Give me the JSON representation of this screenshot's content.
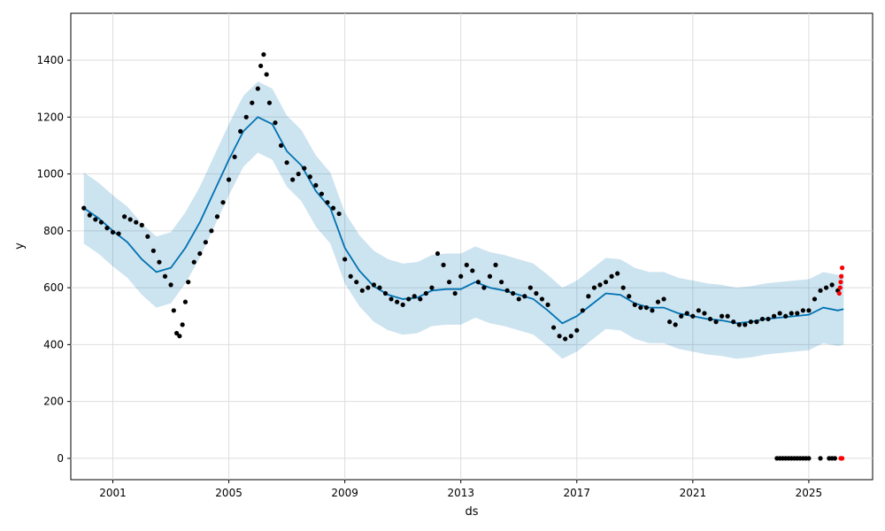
{
  "chart_data": {
    "type": "scatter",
    "title": "",
    "xlabel": "ds",
    "ylabel": "y",
    "xlim": [
      1999.55,
      2027.2
    ],
    "ylim": [
      -75,
      1565
    ],
    "xticks": [
      2001,
      2005,
      2009,
      2013,
      2017,
      2021,
      2025
    ],
    "yticks": [
      0,
      200,
      400,
      600,
      800,
      1000,
      1200,
      1400
    ],
    "grid": true,
    "legend": "none",
    "colors": {
      "observed": "#000000",
      "forecast_line": "#0072b2",
      "uncertainty_band": "#0072b2",
      "anomaly": "#ff0000",
      "grid": "#dddddd"
    },
    "forecast_line": [
      [
        2000.0,
        880
      ],
      [
        2000.5,
        845
      ],
      [
        2001.0,
        800
      ],
      [
        2001.5,
        760
      ],
      [
        2002.0,
        700
      ],
      [
        2002.5,
        655
      ],
      [
        2003.0,
        670
      ],
      [
        2003.5,
        740
      ],
      [
        2004.0,
        830
      ],
      [
        2004.5,
        940
      ],
      [
        2005.0,
        1050
      ],
      [
        2005.5,
        1150
      ],
      [
        2006.0,
        1200
      ],
      [
        2006.5,
        1175
      ],
      [
        2007.0,
        1080
      ],
      [
        2007.5,
        1030
      ],
      [
        2008.0,
        940
      ],
      [
        2008.5,
        880
      ],
      [
        2009.0,
        740
      ],
      [
        2009.5,
        660
      ],
      [
        2010.0,
        605
      ],
      [
        2010.5,
        575
      ],
      [
        2011.0,
        560
      ],
      [
        2011.5,
        565
      ],
      [
        2012.0,
        590
      ],
      [
        2012.5,
        595
      ],
      [
        2013.0,
        595
      ],
      [
        2013.5,
        620
      ],
      [
        2014.0,
        600
      ],
      [
        2014.5,
        590
      ],
      [
        2015.0,
        575
      ],
      [
        2015.5,
        560
      ],
      [
        2016.0,
        520
      ],
      [
        2016.5,
        475
      ],
      [
        2017.0,
        500
      ],
      [
        2017.5,
        540
      ],
      [
        2018.0,
        580
      ],
      [
        2018.5,
        575
      ],
      [
        2019.0,
        545
      ],
      [
        2019.5,
        530
      ],
      [
        2020.0,
        530
      ],
      [
        2020.5,
        510
      ],
      [
        2021.0,
        500
      ],
      [
        2021.5,
        490
      ],
      [
        2022.0,
        485
      ],
      [
        2022.5,
        475
      ],
      [
        2023.0,
        480
      ],
      [
        2023.5,
        490
      ],
      [
        2024.0,
        495
      ],
      [
        2024.5,
        500
      ],
      [
        2025.0,
        505
      ],
      [
        2025.5,
        530
      ],
      [
        2026.0,
        520
      ],
      [
        2026.2,
        525
      ]
    ],
    "band_halfwidth": 125,
    "observed": [
      [
        2000.0,
        880
      ],
      [
        2000.2,
        855
      ],
      [
        2000.4,
        840
      ],
      [
        2000.6,
        830
      ],
      [
        2000.8,
        810
      ],
      [
        2001.0,
        795
      ],
      [
        2001.2,
        790
      ],
      [
        2001.4,
        850
      ],
      [
        2001.6,
        840
      ],
      [
        2001.8,
        830
      ],
      [
        2002.0,
        820
      ],
      [
        2002.2,
        780
      ],
      [
        2002.4,
        730
      ],
      [
        2002.6,
        690
      ],
      [
        2002.8,
        640
      ],
      [
        2003.0,
        610
      ],
      [
        2003.1,
        520
      ],
      [
        2003.2,
        440
      ],
      [
        2003.3,
        430
      ],
      [
        2003.4,
        470
      ],
      [
        2003.5,
        550
      ],
      [
        2003.6,
        620
      ],
      [
        2003.8,
        690
      ],
      [
        2004.0,
        720
      ],
      [
        2004.2,
        760
      ],
      [
        2004.4,
        800
      ],
      [
        2004.6,
        850
      ],
      [
        2004.8,
        900
      ],
      [
        2005.0,
        980
      ],
      [
        2005.2,
        1060
      ],
      [
        2005.4,
        1150
      ],
      [
        2005.6,
        1200
      ],
      [
        2005.8,
        1250
      ],
      [
        2006.0,
        1300
      ],
      [
        2006.1,
        1380
      ],
      [
        2006.2,
        1420
      ],
      [
        2006.3,
        1350
      ],
      [
        2006.4,
        1250
      ],
      [
        2006.6,
        1180
      ],
      [
        2006.8,
        1100
      ],
      [
        2007.0,
        1040
      ],
      [
        2007.2,
        980
      ],
      [
        2007.4,
        1000
      ],
      [
        2007.6,
        1020
      ],
      [
        2007.8,
        990
      ],
      [
        2008.0,
        960
      ],
      [
        2008.2,
        930
      ],
      [
        2008.4,
        900
      ],
      [
        2008.6,
        880
      ],
      [
        2008.8,
        860
      ],
      [
        2009.0,
        700
      ],
      [
        2009.2,
        640
      ],
      [
        2009.4,
        620
      ],
      [
        2009.6,
        590
      ],
      [
        2009.8,
        600
      ],
      [
        2010.0,
        610
      ],
      [
        2010.2,
        600
      ],
      [
        2010.4,
        580
      ],
      [
        2010.6,
        560
      ],
      [
        2010.8,
        550
      ],
      [
        2011.0,
        540
      ],
      [
        2011.2,
        560
      ],
      [
        2011.4,
        570
      ],
      [
        2011.6,
        560
      ],
      [
        2011.8,
        580
      ],
      [
        2012.0,
        600
      ],
      [
        2012.2,
        720
      ],
      [
        2012.4,
        680
      ],
      [
        2012.6,
        620
      ],
      [
        2012.8,
        580
      ],
      [
        2013.0,
        640
      ],
      [
        2013.2,
        680
      ],
      [
        2013.4,
        660
      ],
      [
        2013.6,
        620
      ],
      [
        2013.8,
        600
      ],
      [
        2014.0,
        640
      ],
      [
        2014.2,
        680
      ],
      [
        2014.4,
        620
      ],
      [
        2014.6,
        590
      ],
      [
        2014.8,
        580
      ],
      [
        2015.0,
        560
      ],
      [
        2015.2,
        570
      ],
      [
        2015.4,
        600
      ],
      [
        2015.6,
        580
      ],
      [
        2015.8,
        560
      ],
      [
        2016.0,
        540
      ],
      [
        2016.2,
        460
      ],
      [
        2016.4,
        430
      ],
      [
        2016.6,
        420
      ],
      [
        2016.8,
        430
      ],
      [
        2017.0,
        450
      ],
      [
        2017.2,
        520
      ],
      [
        2017.4,
        570
      ],
      [
        2017.6,
        600
      ],
      [
        2017.8,
        610
      ],
      [
        2018.0,
        620
      ],
      [
        2018.2,
        640
      ],
      [
        2018.4,
        650
      ],
      [
        2018.6,
        600
      ],
      [
        2018.8,
        570
      ],
      [
        2019.0,
        540
      ],
      [
        2019.2,
        530
      ],
      [
        2019.4,
        530
      ],
      [
        2019.6,
        520
      ],
      [
        2019.8,
        550
      ],
      [
        2020.0,
        560
      ],
      [
        2020.2,
        480
      ],
      [
        2020.4,
        470
      ],
      [
        2020.6,
        500
      ],
      [
        2020.8,
        510
      ],
      [
        2021.0,
        500
      ],
      [
        2021.2,
        520
      ],
      [
        2021.4,
        510
      ],
      [
        2021.6,
        490
      ],
      [
        2021.8,
        480
      ],
      [
        2022.0,
        500
      ],
      [
        2022.2,
        500
      ],
      [
        2022.4,
        480
      ],
      [
        2022.6,
        470
      ],
      [
        2022.8,
        470
      ],
      [
        2023.0,
        480
      ],
      [
        2023.2,
        480
      ],
      [
        2023.4,
        490
      ],
      [
        2023.6,
        490
      ],
      [
        2023.8,
        500
      ],
      [
        2024.0,
        510
      ],
      [
        2024.2,
        500
      ],
      [
        2024.4,
        510
      ],
      [
        2024.6,
        510
      ],
      [
        2024.8,
        520
      ],
      [
        2025.0,
        520
      ],
      [
        2025.2,
        560
      ],
      [
        2025.4,
        590
      ],
      [
        2025.6,
        600
      ],
      [
        2025.8,
        610
      ],
      [
        2026.0,
        590
      ],
      [
        2023.9,
        0
      ],
      [
        2024.0,
        0
      ],
      [
        2024.1,
        0
      ],
      [
        2024.2,
        0
      ],
      [
        2024.3,
        0
      ],
      [
        2024.4,
        0
      ],
      [
        2024.5,
        0
      ],
      [
        2024.6,
        0
      ],
      [
        2024.7,
        0
      ],
      [
        2024.8,
        0
      ],
      [
        2024.9,
        0
      ],
      [
        2025.0,
        0
      ],
      [
        2025.4,
        0
      ],
      [
        2025.7,
        0
      ],
      [
        2025.8,
        0
      ],
      [
        2025.9,
        0
      ]
    ],
    "anomalies": [
      [
        2026.05,
        580
      ],
      [
        2026.08,
        600
      ],
      [
        2026.1,
        620
      ],
      [
        2026.12,
        640
      ],
      [
        2026.15,
        670
      ],
      [
        2026.1,
        0
      ],
      [
        2026.15,
        0
      ]
    ]
  }
}
